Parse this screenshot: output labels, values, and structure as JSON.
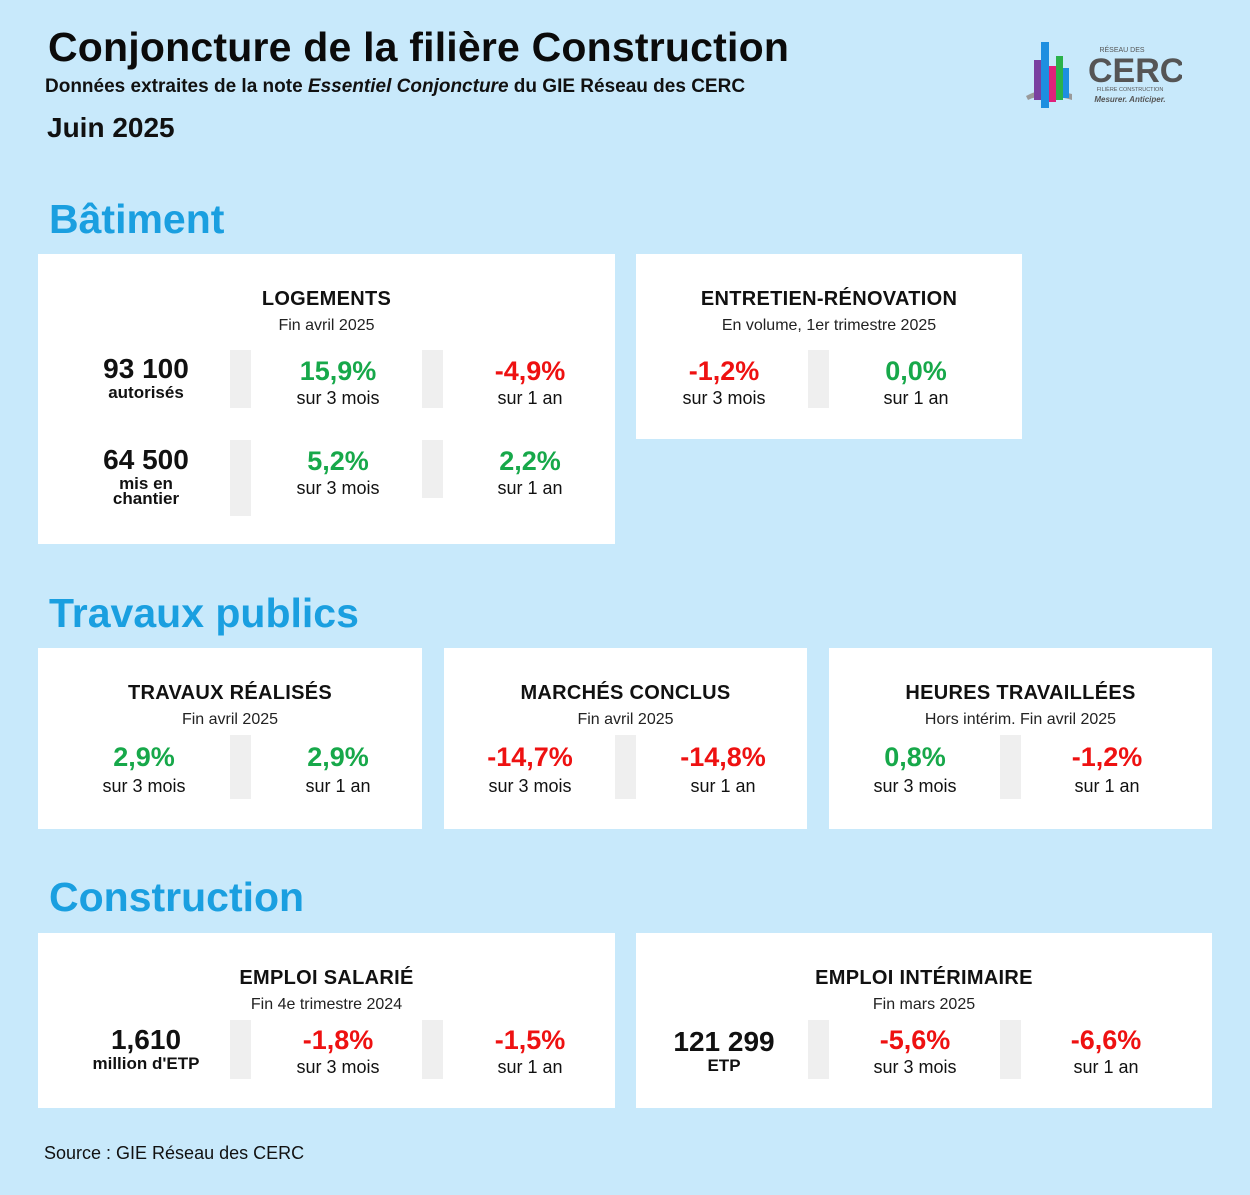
{
  "header": {
    "title": "Conjoncture de la filière Construction",
    "subtitle_pre": "Données extraites de la note ",
    "subtitle_em": "Essentiel Conjoncture",
    "subtitle_post": " du GIE Réseau des CERC",
    "date": "Juin 2025"
  },
  "logo": {
    "top": "RÉSEAU DES",
    "name": "CERC",
    "line": "FILIÈRE CONSTRUCTION",
    "tagline": "Mesurer. Anticiper."
  },
  "sections": {
    "batiment": "Bâtiment",
    "tp": "Travaux publics",
    "construction": "Construction"
  },
  "logements": {
    "title": "LOGEMENTS",
    "sub": "Fin avril 2025",
    "row1": {
      "num": "93 100",
      "unit": "autorisés",
      "v1": "15,9%",
      "l1": "sur 3 mois",
      "v2": "-4,9%",
      "l2": "sur 1 an"
    },
    "row2": {
      "num": "64 500",
      "unit1": "mis en",
      "unit2": "chantier",
      "v1": "5,2%",
      "l1": "sur 3 mois",
      "v2": "2,2%",
      "l2": "sur 1 an"
    }
  },
  "entretien": {
    "title": "ENTRETIEN-RÉNOVATION",
    "sub": "En volume, 1er trimestre 2025",
    "v1": "-1,2%",
    "l1": "sur 3 mois",
    "v2": "0,0%",
    "l2": "sur 1 an"
  },
  "travaux": {
    "title": "TRAVAUX RÉALISÉS",
    "sub": "Fin avril 2025",
    "v1": "2,9%",
    "l1": "sur 3 mois",
    "v2": "2,9%",
    "l2": "sur 1 an"
  },
  "marches": {
    "title": "MARCHÉS CONCLUS",
    "sub": "Fin avril 2025",
    "v1": "-14,7%",
    "l1": "sur 3 mois",
    "v2": "-14,8%",
    "l2": "sur 1 an"
  },
  "heures": {
    "title": "HEURES TRAVAILLÉES",
    "sub": "Hors intérim. Fin avril 2025",
    "v1": "0,8%",
    "l1": "sur 3 mois",
    "v2": "-1,2%",
    "l2": "sur 1 an"
  },
  "emploi_salarie": {
    "title": "EMPLOI SALARIÉ",
    "sub": "Fin 4e trimestre 2024",
    "num": "1,610",
    "unit": "million d'ETP",
    "v1": "-1,8%",
    "l1": "sur 3 mois",
    "v2": "-1,5%",
    "l2": "sur 1 an"
  },
  "emploi_interim": {
    "title": "EMPLOI INTÉRIMAIRE",
    "sub": "Fin mars 2025",
    "num": "121 299",
    "unit": "ETP",
    "v1": "-5,6%",
    "l1": "sur 3 mois",
    "v2": "-6,6%",
    "l2": "sur 1 an"
  },
  "source": "Source : GIE Réseau des CERC",
  "colors": {
    "background": "#c8e9fb",
    "section": "#1a9fe0",
    "positive": "#17a84a",
    "negative": "#ee1111"
  }
}
